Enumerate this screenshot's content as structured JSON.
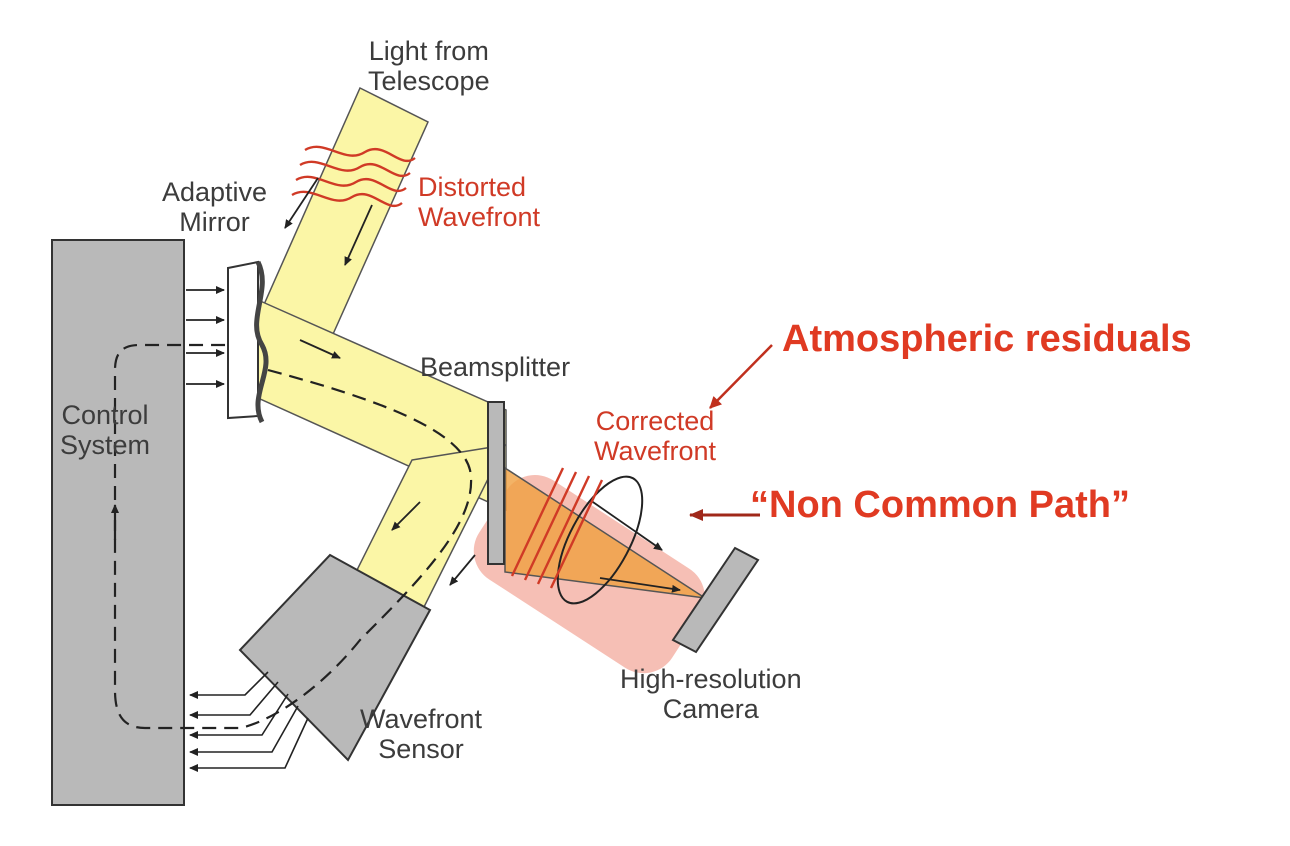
{
  "labels": {
    "light_from_telescope": [
      "Light from",
      "Telescope"
    ],
    "distorted_wavefront": [
      "Distorted",
      "Wavefront"
    ],
    "adaptive_mirror": [
      "Adaptive",
      "Mirror"
    ],
    "control_system": [
      "Control",
      "System"
    ],
    "beamsplitter": "Beamsplitter",
    "corrected_wavefront": [
      "Corrected",
      "Wavefront"
    ],
    "high_resolution_camera": [
      "High-resolution",
      "Camera"
    ],
    "wavefront_sensor": [
      "Wavefront",
      "Sensor"
    ]
  },
  "annotations": {
    "atmospheric_residuals": "Atmospheric residuals",
    "non_common_path": "“Non Common Path”"
  },
  "colors": {
    "beam": "#fbf6a6",
    "component_gray": "#b9b9b9",
    "label_red": "#d03a26",
    "annotation_red": "#e03a22",
    "arrow_dark_red": "#b02a1a",
    "highlight": "#e8563c",
    "cone_orange": "#f0a040"
  }
}
